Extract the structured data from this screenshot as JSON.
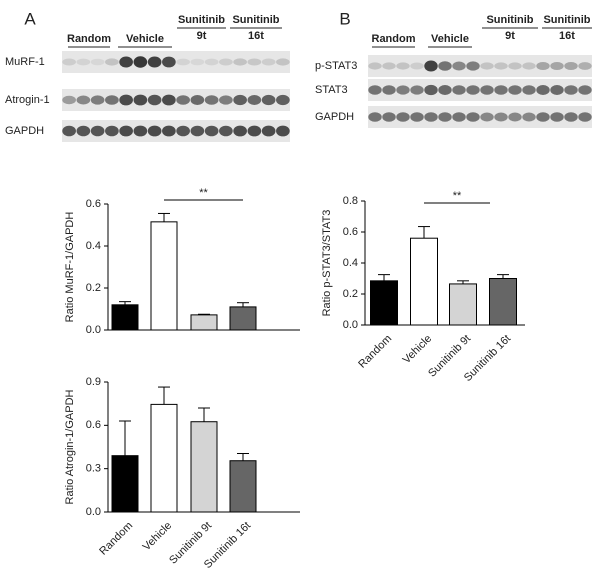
{
  "panels": [
    {
      "label": "A",
      "groups": [
        [
          "Random"
        ],
        [
          "Vehicle"
        ],
        [
          "Sunitinib",
          "9t"
        ],
        [
          "Sunitinib",
          "16t"
        ]
      ],
      "rows": [
        "MuRF-1",
        "Atrogin-1",
        "GAPDH"
      ]
    },
    {
      "label": "B",
      "groups": [
        [
          "Random"
        ],
        [
          "Vehicle"
        ],
        [
          "Sunitinib",
          "9t"
        ],
        [
          "Sunitinib",
          "16t"
        ]
      ],
      "rows": [
        "p-STAT3",
        "STAT3",
        "GAPDH"
      ]
    }
  ],
  "chart_data": [
    {
      "type": "bar",
      "y_label": "Ratio MuRF-1/GAPDH",
      "values": [
        0.12,
        0.515,
        0.072,
        0.11
      ],
      "errors": [
        0.015,
        0.04,
        0.003,
        0.02
      ],
      "colors": [
        "#000000",
        "#ffffff",
        "#d4d4d4",
        "#666666"
      ],
      "ylim": [
        0,
        0.6
      ],
      "yticks": [
        {
          "value": 0,
          "label": "0.0"
        },
        0.2,
        0.4,
        0.6
      ],
      "annotations": [
        {
          "text": "**"
        }
      ]
    },
    {
      "type": "bar",
      "y_label": "Ratio Atrogin-1/GAPDH",
      "categories": [
        "Random",
        "Vehicle",
        "Sunitinib 9t",
        "Sunitinib 16t"
      ],
      "values": [
        0.39,
        0.745,
        0.625,
        0.355
      ],
      "errors": [
        0.24,
        0.12,
        0.095,
        0.05
      ],
      "colors": [
        "#000000",
        "#ffffff",
        "#d4d4d4",
        "#666666"
      ],
      "ylim": [
        0,
        0.9
      ],
      "yticks": [
        {
          "value": 0,
          "label": "0.0"
        },
        0.3,
        0.6,
        0.9
      ]
    },
    {
      "type": "bar",
      "y_label": "Ratio p-STAT3/STAT3",
      "categories": [
        "Random",
        "Vehicle",
        "Sunitinib 9t",
        "Sunitinib 16t"
      ],
      "values": [
        0.285,
        0.56,
        0.265,
        0.3
      ],
      "errors": [
        0.04,
        0.075,
        0.02,
        0.025
      ],
      "colors": [
        "#000000",
        "#ffffff",
        "#d4d4d4",
        "#666666"
      ],
      "ylim": [
        0,
        0.8
      ],
      "yticks": [
        {
          "value": 0,
          "label": "0.0"
        },
        0.2,
        0.4,
        0.6,
        0.8
      ],
      "annotations": [
        {
          "text": "**"
        }
      ]
    }
  ]
}
